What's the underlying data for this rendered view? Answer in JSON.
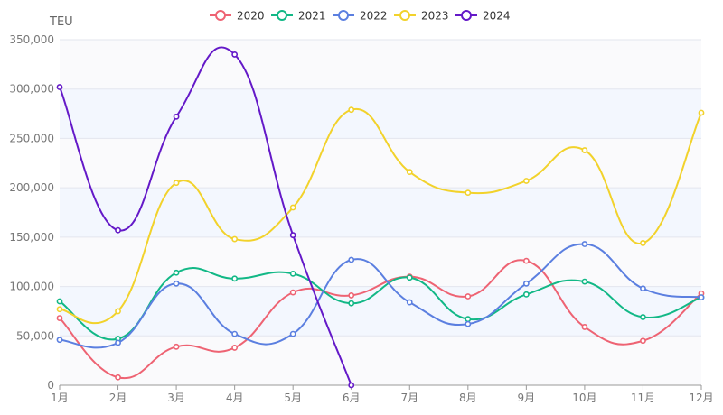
{
  "chart_data": {
    "type": "line",
    "smooth": true,
    "ylabel": "TEU",
    "ylim": [
      0,
      350000
    ],
    "yticks": [
      0,
      50000,
      100000,
      150000,
      200000,
      250000,
      300000,
      350000
    ],
    "ytick_labels": [
      "0",
      "50,000",
      "100,000",
      "150,000",
      "200,000",
      "250,000",
      "300,000",
      "350,000"
    ],
    "categories": [
      "1月",
      "2月",
      "3月",
      "4月",
      "5月",
      "6月",
      "7月",
      "8月",
      "9月",
      "10月",
      "11月",
      "12月"
    ],
    "legend_position": "top-center",
    "grid": true,
    "banded_background": true,
    "series": [
      {
        "name": "2020",
        "color": "#ee6373",
        "values": [
          68000,
          8000,
          39000,
          38000,
          94000,
          91000,
          110000,
          90000,
          126000,
          59000,
          45000,
          93000
        ]
      },
      {
        "name": "2021",
        "color": "#12b886",
        "values": [
          85000,
          47000,
          114000,
          108000,
          113000,
          83000,
          109000,
          67000,
          92000,
          105000,
          69000,
          89000
        ]
      },
      {
        "name": "2022",
        "color": "#5b7fe0",
        "values": [
          46000,
          43000,
          103000,
          52000,
          52000,
          127000,
          84000,
          62000,
          103000,
          143000,
          98000,
          89000
        ]
      },
      {
        "name": "2023",
        "color": "#f2d22b",
        "values": [
          77000,
          75000,
          205000,
          148000,
          180000,
          279000,
          216000,
          195000,
          207000,
          238000,
          144000,
          276000
        ]
      },
      {
        "name": "2024",
        "color": "#6419c8",
        "values": [
          302000,
          157000,
          272000,
          335000,
          152000,
          0,
          null,
          null,
          null,
          null,
          null,
          null
        ]
      }
    ]
  }
}
